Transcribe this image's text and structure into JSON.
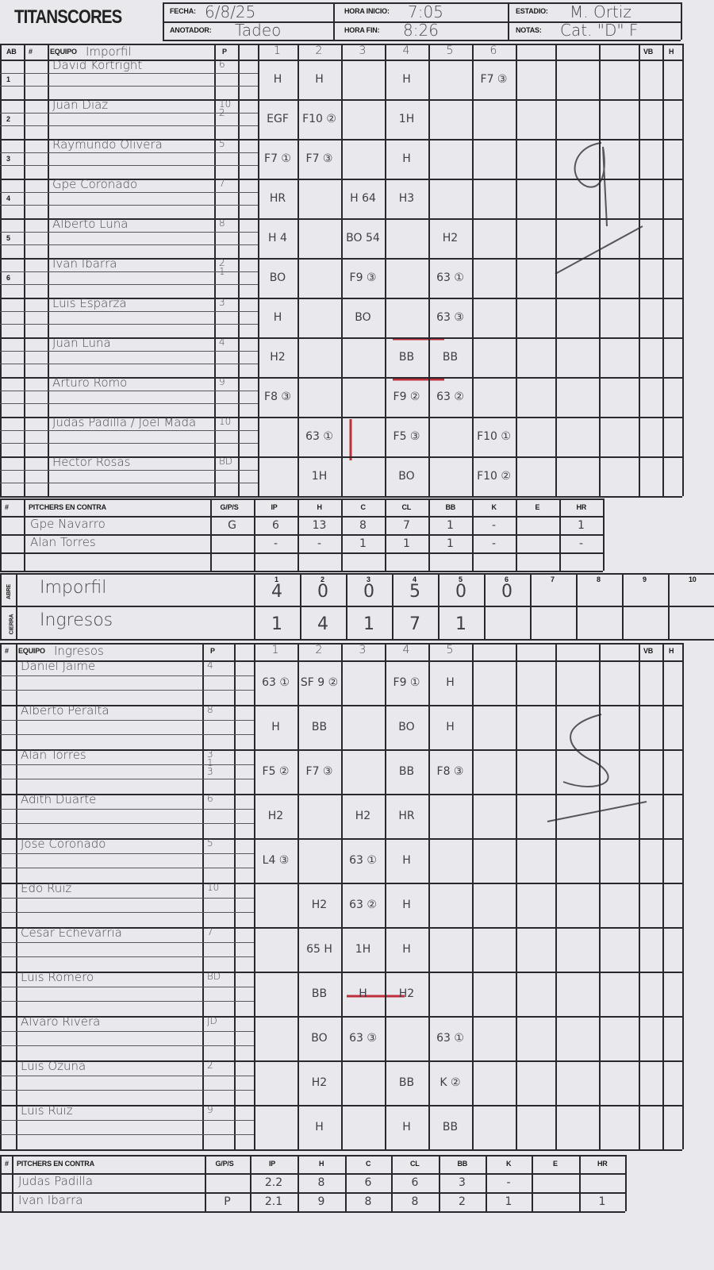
{
  "header": {
    "logo": "TITANSCORES",
    "fecha_label": "FECHA:",
    "fecha": "6/8/25",
    "hora_inicio_label": "HORA INICIO:",
    "hora_inicio": "7:05",
    "estadio_label": "ESTADIO:",
    "estadio": "M. Ortiz",
    "anotador_label": "ANOTADOR:",
    "anotador": "Tadeo",
    "hora_fin_label": "HORA FIN:",
    "hora_fin": "8:26",
    "notas_label": "NOTAS:",
    "notas": "Cat. \"D\" F"
  },
  "away": {
    "headers": {
      "ab": "AB",
      "num": "#",
      "equipo": "EQUIPO",
      "p": "P",
      "vb": "VB",
      "h": "H"
    },
    "team": "Imporfil",
    "innings": [
      "1",
      "2",
      "3",
      "4",
      "5",
      "6"
    ],
    "players": [
      {
        "ab": "1",
        "name": "David Kortright",
        "p": "6",
        "cells": [
          "H",
          "H",
          "",
          "H",
          "",
          "F7 ③"
        ]
      },
      {
        "ab": "2",
        "name": "Juan Diaz",
        "p": "10 2",
        "cells": [
          "EGF",
          "F10 ②",
          "",
          "1H",
          "",
          ""
        ]
      },
      {
        "ab": "3",
        "name": "Raymundo Olivera",
        "p": "5",
        "cells": [
          "F7 ①",
          "F7 ③",
          "",
          "H",
          "",
          ""
        ]
      },
      {
        "ab": "4",
        "name": "Gpe Coronado",
        "p": "7",
        "cells": [
          "HR",
          "",
          "H 64",
          "H3",
          "",
          ""
        ]
      },
      {
        "ab": "5",
        "name": "Alberto Luna",
        "p": "8",
        "cells": [
          "H 4",
          "",
          "BO 54",
          "",
          "H2",
          ""
        ]
      },
      {
        "ab": "6",
        "name": "Ivan Ibarra",
        "p": "2 1",
        "cells": [
          "BO",
          "",
          "F9 ③",
          "",
          "63 ①",
          ""
        ]
      },
      {
        "ab": "",
        "name": "Luis Esparza",
        "p": "3",
        "cells": [
          "H",
          "",
          "BO",
          "",
          "63 ③",
          ""
        ]
      },
      {
        "ab": "",
        "name": "Juan Luna",
        "p": "4",
        "cells": [
          "H2",
          "",
          "",
          "BB",
          "BB",
          ""
        ]
      },
      {
        "ab": "",
        "name": "Arturo Romo",
        "p": "9",
        "cells": [
          "F8 ③",
          "",
          "",
          "F9 ②",
          "63 ②",
          ""
        ]
      },
      {
        "ab": "",
        "name": "Judas Padilla / Joel Mada",
        "p": "10",
        "cells": [
          "",
          "63 ①",
          "",
          "F5 ③",
          "",
          "F10 ①"
        ]
      },
      {
        "ab": "",
        "name": "Hector Rosas",
        "p": "BD",
        "cells": [
          "",
          "1H",
          "",
          "BO",
          "",
          "F10 ②"
        ]
      }
    ]
  },
  "pitchers_headers": [
    "#",
    "PITCHERS EN CONTRA",
    "G/P/S",
    "IP",
    "H",
    "C",
    "CL",
    "BB",
    "K",
    "E",
    "HR"
  ],
  "away_pitchers": [
    [
      "",
      "Gpe Navarro",
      "G",
      "6",
      "13",
      "8",
      "7",
      "1",
      "-",
      "",
      "1"
    ],
    [
      "",
      "Alan Torres",
      "",
      "-",
      "-",
      "1",
      "1",
      "1",
      "-",
      "",
      "-"
    ],
    [
      "",
      "",
      "",
      "",
      "",
      "",
      "",
      "",
      "",
      "",
      ""
    ]
  ],
  "scoreboard": {
    "innings": [
      "1",
      "2",
      "3",
      "4",
      "5",
      "6",
      "7",
      "8",
      "9",
      "10"
    ],
    "rows": [
      {
        "side": "ABRE",
        "team": "Imporfil",
        "runs": [
          "4",
          "0",
          "0",
          "5",
          "0",
          "0",
          "",
          "",
          "",
          ""
        ]
      },
      {
        "side": "CIERRA",
        "team": "Ingresos",
        "runs": [
          "1",
          "4",
          "1",
          "7",
          "1",
          "",
          "",
          "",
          "",
          ""
        ]
      }
    ]
  },
  "home": {
    "headers": {
      "num": "#",
      "equipo": "EQUIPO",
      "p": "P",
      "vb": "VB",
      "h": "H"
    },
    "team": "Ingresos",
    "innings": [
      "1",
      "2",
      "3",
      "4",
      "5"
    ],
    "players": [
      {
        "name": "Daniel Jaime",
        "p": "4",
        "cells": [
          "63 ①",
          "SF 9 ②",
          "",
          "F9 ①",
          "H"
        ]
      },
      {
        "name": "Alberto Peralta",
        "p": "8",
        "cells": [
          "H",
          "BB",
          "",
          "BO",
          "H"
        ]
      },
      {
        "name": "Alan Torres",
        "p": "3 1 3",
        "cells": [
          "F5 ②",
          "F7 ③",
          "",
          "BB",
          "F8 ③"
        ]
      },
      {
        "name": "Adith Duarte",
        "p": "6",
        "cells": [
          "H2",
          "",
          "H2",
          "HR",
          ""
        ]
      },
      {
        "name": "Jose Coronado",
        "p": "5",
        "cells": [
          "L4 ③",
          "",
          "63 ①",
          "H",
          ""
        ]
      },
      {
        "name": "Edo Ruiz",
        "p": "10",
        "cells": [
          "",
          "H2",
          "63 ②",
          "H",
          ""
        ]
      },
      {
        "name": "Cesar Echevarria",
        "p": "7",
        "cells": [
          "",
          "65 H",
          "1H",
          "H",
          ""
        ]
      },
      {
        "name": "Luis Romero",
        "p": "BD",
        "cells": [
          "",
          "BB",
          "H",
          "H2",
          ""
        ]
      },
      {
        "name": "Alvaro Rivera",
        "p": "JD",
        "cells": [
          "",
          "BO",
          "63 ③",
          "",
          "63 ①"
        ]
      },
      {
        "name": "Luis Ozuna",
        "p": "2",
        "cells": [
          "",
          "H2",
          "",
          "BB",
          "K ②"
        ]
      },
      {
        "name": "Luis Ruiz",
        "p": "9",
        "cells": [
          "",
          "H",
          "",
          "H",
          "BB"
        ]
      }
    ]
  },
  "home_pitchers": [
    [
      "",
      "Judas Padilla",
      "",
      "2.2",
      "8",
      "6",
      "6",
      "3",
      "-",
      "",
      ""
    ],
    [
      "",
      "Ivan Ibarra",
      "P",
      "2.1",
      "9",
      "8",
      "8",
      "2",
      "1",
      "",
      "1"
    ]
  ],
  "colors": {
    "paper": "#e9e9ed",
    "ink": "#2a2a2e",
    "pencil": "#4a4a52",
    "red_pencil": "#c0303a"
  }
}
